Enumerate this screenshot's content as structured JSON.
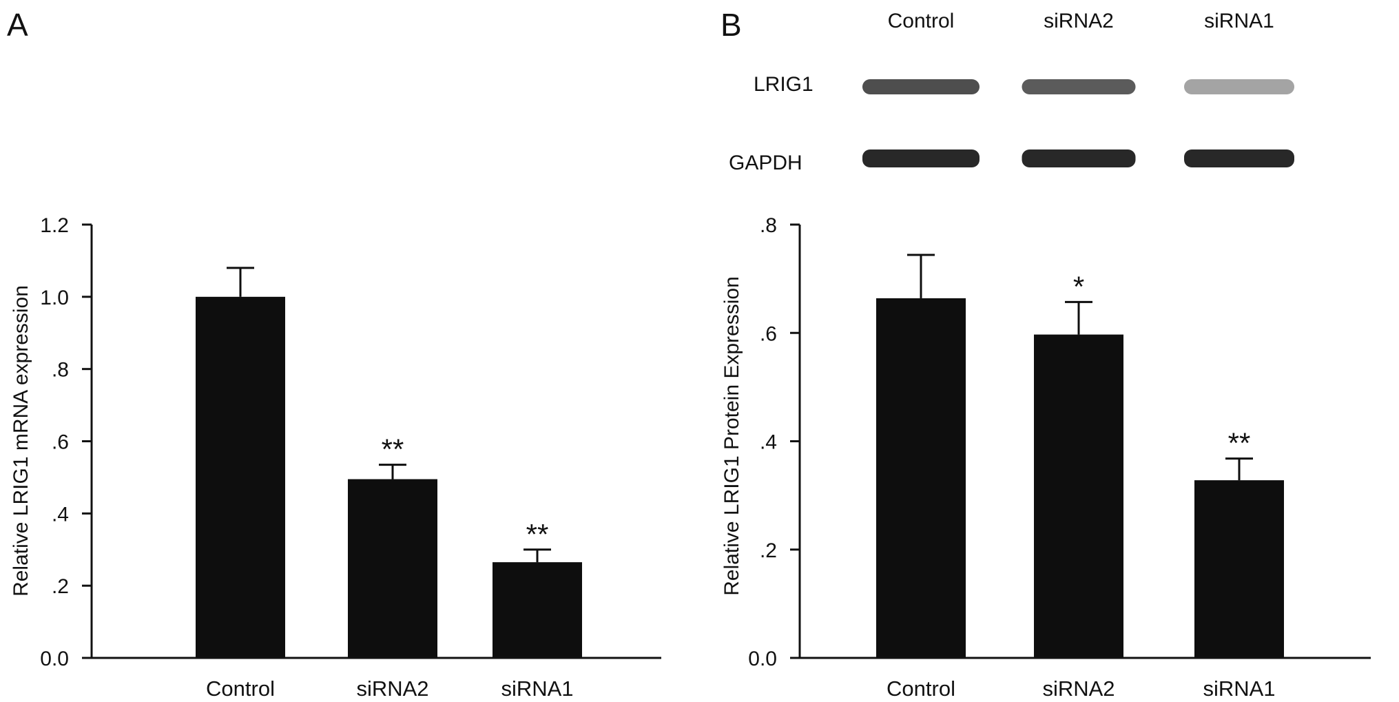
{
  "panels": {
    "a": {
      "letter": "A"
    },
    "b": {
      "letter": "B"
    }
  },
  "western_blot": {
    "lane_labels": [
      "Control",
      "siRNA2",
      "siRNA1"
    ],
    "bands": [
      {
        "label": "LRIG1",
        "intensities": [
          0.78,
          0.72,
          0.4
        ]
      },
      {
        "label": "GAPDH",
        "intensities": [
          0.95,
          0.95,
          0.95
        ]
      }
    ]
  },
  "colors": {
    "bar": "#0e0e0e",
    "axis": "#111111",
    "band": "#1c1c1c"
  },
  "chart_data": [
    {
      "type": "bar",
      "title": "",
      "xlabel": "",
      "ylabel": "Relative LRIG1 mRNA expression",
      "categories": [
        "Control",
        "siRNA2",
        "siRNA1"
      ],
      "values": [
        1.0,
        0.495,
        0.265
      ],
      "errors": [
        0.08,
        0.04,
        0.035
      ],
      "significance": [
        "",
        "**",
        "**"
      ],
      "ylim": [
        0,
        1.2
      ],
      "yticks": [
        0,
        0.2,
        0.4,
        0.6,
        0.8,
        1.0,
        1.2
      ],
      "ytick_labels": [
        "0.0",
        ".2",
        ".4",
        ".6",
        ".8",
        "1.0",
        "1.2"
      ],
      "grid": false
    },
    {
      "type": "bar",
      "title": "",
      "xlabel": "",
      "ylabel": "Relative LRIG1 Protein Expression",
      "categories": [
        "Control",
        "siRNA2",
        "siRNA1"
      ],
      "values": [
        0.664,
        0.597,
        0.328
      ],
      "errors": [
        0.08,
        0.06,
        0.04
      ],
      "significance": [
        "",
        "*",
        "**"
      ],
      "ylim": [
        0,
        0.8
      ],
      "yticks": [
        0,
        0.2,
        0.4,
        0.6,
        0.8
      ],
      "ytick_labels": [
        "0.0",
        ".2",
        ".4",
        ".6",
        ".8"
      ],
      "grid": false
    }
  ]
}
